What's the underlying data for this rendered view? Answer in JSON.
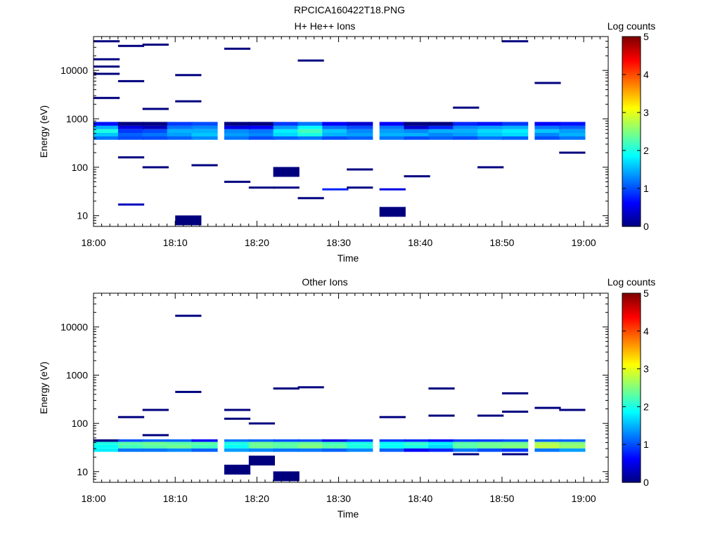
{
  "figure": {
    "title": "RPCICA160422T18.PNG"
  },
  "colors": {
    "colormap": [
      "#00007f",
      "#0000ff",
      "#007fff",
      "#00ffff",
      "#7fff7f",
      "#ffff00",
      "#ff7f00",
      "#ff0000",
      "#7f0000"
    ]
  },
  "chart_data": [
    {
      "type": "heatmap",
      "title": "H+ He++ Ions",
      "xlabel": "Time",
      "ylabel": "Energy (eV)",
      "x_scale": "time",
      "y_scale": "log",
      "xlim": [
        "18:00",
        "19:03"
      ],
      "ylim": [
        6,
        50000
      ],
      "x_ticks": [
        "18:00",
        "18:10",
        "18:20",
        "18:30",
        "18:40",
        "18:50",
        "19:00"
      ],
      "y_ticks": [
        "10",
        "100",
        "1000",
        "10000"
      ],
      "colorbar": {
        "label": "Log counts",
        "range": [
          0,
          5
        ],
        "ticks": [
          "0",
          "1",
          "2",
          "3",
          "4",
          "5"
        ]
      },
      "grid": false,
      "columns": [
        "18:00",
        "18:03",
        "18:06",
        "18:09",
        "18:12",
        "18:16",
        "18:19",
        "18:22",
        "18:25",
        "18:28",
        "18:31",
        "18:35",
        "18:38",
        "18:41",
        "18:44",
        "18:47",
        "18:50",
        "18:54",
        "18:57"
      ],
      "bands": [
        {
          "energy": 400,
          "values": [
            1.2,
            1.0,
            1.0,
            1.1,
            1.3,
            1.2,
            1.0,
            1.1,
            1.2,
            1.0,
            1.1,
            1.2,
            1.0,
            1.1,
            1.0,
            1.2,
            1.1,
            1.0,
            1.2
          ]
        },
        {
          "energy": 470,
          "values": [
            1.6,
            1.1,
            1.2,
            1.4,
            1.6,
            1.4,
            1.3,
            1.7,
            2.0,
            1.5,
            1.4,
            1.5,
            1.5,
            1.3,
            1.4,
            1.6,
            1.7,
            1.3,
            1.5
          ]
        },
        {
          "energy": 560,
          "values": [
            2.0,
            0.9,
            1.0,
            1.5,
            1.5,
            1.3,
            1.2,
            1.8,
            2.2,
            1.6,
            1.3,
            1.4,
            1.3,
            1.5,
            1.5,
            1.7,
            1.8,
            1.6,
            1.4
          ]
        },
        {
          "energy": 660,
          "values": [
            1.5,
            0.5,
            0.3,
            1.2,
            1.3,
            0.5,
            0.6,
            1.4,
            1.9,
            1.2,
            1.0,
            1.2,
            0.4,
            0.8,
            1.3,
            1.4,
            1.5,
            1.2,
            1.1
          ]
        },
        {
          "energy": 790,
          "values": [
            0.7,
            0.0,
            0.0,
            0.9,
            1.0,
            0.0,
            0.0,
            0.9,
            1.2,
            0.6,
            0.4,
            0.6,
            0.0,
            0.0,
            0.8,
            0.7,
            0.9,
            0.6,
            0.7
          ]
        }
      ],
      "sparse_counts": [
        {
          "time": "18:00",
          "energy": 40000,
          "value": 0
        },
        {
          "time": "18:00",
          "energy": 17000,
          "value": 0
        },
        {
          "time": "18:00",
          "energy": 12000,
          "value": 0
        },
        {
          "time": "18:00",
          "energy": 8500,
          "value": 0
        },
        {
          "time": "18:00",
          "energy": 2700,
          "value": 0
        },
        {
          "time": "18:03",
          "energy": 32000,
          "value": 0
        },
        {
          "time": "18:03",
          "energy": 6000,
          "value": 0
        },
        {
          "time": "18:03",
          "energy": 160,
          "value": 0
        },
        {
          "time": "18:03",
          "energy": 17,
          "value": 0.3
        },
        {
          "time": "18:06",
          "energy": 34000,
          "value": 0
        },
        {
          "time": "18:06",
          "energy": 1600,
          "value": 0
        },
        {
          "time": "18:06",
          "energy": 100,
          "value": 0
        },
        {
          "time": "18:10",
          "energy": 8,
          "value": 0
        },
        {
          "time": "18:10",
          "energy": 8000,
          "value": 0
        },
        {
          "time": "18:10",
          "energy": 2300,
          "value": 0
        },
        {
          "time": "18:12",
          "energy": 110,
          "value": 0
        },
        {
          "time": "18:16",
          "energy": 28000,
          "value": 0
        },
        {
          "time": "18:16",
          "energy": 50,
          "value": 0
        },
        {
          "time": "18:19",
          "energy": 38,
          "value": 0
        },
        {
          "time": "18:22",
          "energy": 80,
          "value": 0
        },
        {
          "time": "18:22",
          "energy": 38,
          "value": 0
        },
        {
          "time": "18:25",
          "energy": 23,
          "value": 0
        },
        {
          "time": "18:25",
          "energy": 16000,
          "value": 0
        },
        {
          "time": "18:28",
          "energy": 35,
          "value": 0.8
        },
        {
          "time": "18:31",
          "energy": 38,
          "value": 0
        },
        {
          "time": "18:31",
          "energy": 90,
          "value": 0
        },
        {
          "time": "18:35",
          "energy": 12,
          "value": 0
        },
        {
          "time": "18:35",
          "energy": 35,
          "value": 0.5
        },
        {
          "time": "18:38",
          "energy": 65,
          "value": 0
        },
        {
          "time": "18:44",
          "energy": 1700,
          "value": 0
        },
        {
          "time": "18:47",
          "energy": 100,
          "value": 0
        },
        {
          "time": "18:50",
          "energy": 40000,
          "value": 0
        },
        {
          "time": "18:54",
          "energy": 5500,
          "value": 0
        },
        {
          "time": "18:57",
          "energy": 200,
          "value": 0
        }
      ]
    },
    {
      "type": "heatmap",
      "title": "Other Ions",
      "xlabel": "Time",
      "ylabel": "Energy (eV)",
      "x_scale": "time",
      "y_scale": "log",
      "xlim": [
        "18:00",
        "19:03"
      ],
      "ylim": [
        6,
        50000
      ],
      "x_ticks": [
        "18:00",
        "18:10",
        "18:20",
        "18:30",
        "18:40",
        "18:50",
        "19:00"
      ],
      "y_ticks": [
        "10",
        "100",
        "1000",
        "10000"
      ],
      "colorbar": {
        "label": "Log counts",
        "range": [
          0,
          5
        ],
        "ticks": [
          "0",
          "1",
          "2",
          "3",
          "4",
          "5"
        ]
      },
      "grid": false,
      "columns": [
        "18:00",
        "18:03",
        "18:06",
        "18:09",
        "18:12",
        "18:16",
        "18:19",
        "18:22",
        "18:25",
        "18:28",
        "18:31",
        "18:35",
        "18:38",
        "18:41",
        "18:44",
        "18:47",
        "18:50",
        "18:54",
        "18:57"
      ],
      "bands": [
        {
          "energy": 28,
          "values": [
            1.8,
            1.2,
            1.2,
            1.3,
            1.1,
            1.4,
            1.3,
            1.2,
            1.2,
            1.1,
            1.3,
            1.1,
            0.6,
            0.8,
            1.2,
            1.0,
            0.9,
            1.2,
            1.4
          ]
        },
        {
          "energy": 33,
          "values": [
            1.9,
            2.2,
            2.3,
            2.4,
            2.2,
            1.9,
            2.4,
            2.3,
            2.5,
            2.3,
            2.0,
            1.9,
            2.0,
            1.7,
            2.3,
            2.4,
            2.5,
            2.8,
            2.6
          ]
        },
        {
          "energy": 39,
          "values": [
            2.0,
            2.3,
            2.4,
            2.3,
            2.3,
            2.0,
            2.4,
            2.3,
            2.4,
            2.2,
            2.0,
            1.9,
            2.1,
            1.8,
            2.3,
            2.4,
            2.4,
            2.7,
            2.5
          ]
        },
        {
          "energy": 44,
          "values": [
            0.0,
            1.0,
            1.1,
            1.1,
            0.6,
            1.2,
            1.1,
            1.0,
            1.0,
            0.5,
            0.9,
            0.9,
            0.8,
            0.6,
            0.9,
            0.9,
            1.0,
            1.1,
            1.1
          ]
        }
      ],
      "sparse_counts": [
        {
          "time": "18:03",
          "energy": 135,
          "value": 0
        },
        {
          "time": "18:06",
          "energy": 190,
          "value": 0
        },
        {
          "time": "18:06",
          "energy": 57,
          "value": 0
        },
        {
          "time": "18:10",
          "energy": 17000,
          "value": 0
        },
        {
          "time": "18:10",
          "energy": 450,
          "value": 0
        },
        {
          "time": "18:16",
          "energy": 190,
          "value": 0
        },
        {
          "time": "18:16",
          "energy": 125,
          "value": 0
        },
        {
          "time": "18:16",
          "energy": 11,
          "value": 0
        },
        {
          "time": "18:19",
          "energy": 100,
          "value": 0
        },
        {
          "time": "18:19",
          "energy": 17,
          "value": 0
        },
        {
          "time": "18:22",
          "energy": 530,
          "value": 0
        },
        {
          "time": "18:22",
          "energy": 8,
          "value": 0
        },
        {
          "time": "18:25",
          "energy": 560,
          "value": 0
        },
        {
          "time": "18:35",
          "energy": 135,
          "value": 0
        },
        {
          "time": "18:41",
          "energy": 530,
          "value": 0
        },
        {
          "time": "18:41",
          "energy": 145,
          "value": 0
        },
        {
          "time": "18:44",
          "energy": 23,
          "value": 0
        },
        {
          "time": "18:47",
          "energy": 145,
          "value": 0
        },
        {
          "time": "18:50",
          "energy": 420,
          "value": 0
        },
        {
          "time": "18:50",
          "energy": 175,
          "value": 0
        },
        {
          "time": "18:50",
          "energy": 23,
          "value": 0
        },
        {
          "time": "18:54",
          "energy": 210,
          "value": 0
        },
        {
          "time": "18:57",
          "energy": 190,
          "value": 0
        }
      ]
    }
  ]
}
